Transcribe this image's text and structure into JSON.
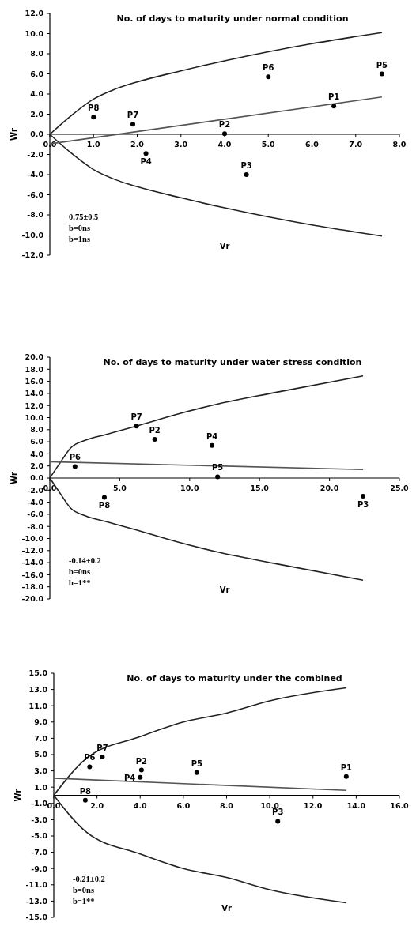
{
  "chart_data": [
    {
      "type": "scatter",
      "title": "No. of days to maturity under normal condition",
      "xlabel": "Vr",
      "ylabel": "Wr",
      "xlim": [
        0,
        8
      ],
      "ylim": [
        -12,
        12
      ],
      "xticks": [
        {
          "value": 0,
          "label": "0.0"
        },
        {
          "value": 1,
          "label": "1.0"
        },
        {
          "value": 2,
          "label": "2.0"
        },
        {
          "value": 3,
          "label": "3.0"
        },
        {
          "value": 4,
          "label": "4.0"
        },
        {
          "value": 5,
          "label": "5.0"
        },
        {
          "value": 6,
          "label": "6.0"
        },
        {
          "value": 7,
          "label": "7.0"
        },
        {
          "value": 8,
          "label": "8.0"
        }
      ],
      "yticks": [
        {
          "value": -12,
          "label": "-12.0"
        },
        {
          "value": -10,
          "label": "-10.0"
        },
        {
          "value": -8,
          "label": "-8.0"
        },
        {
          "value": -6,
          "label": "-6.0"
        },
        {
          "value": -4,
          "label": "-4.0"
        },
        {
          "value": -2,
          "label": "-2.0"
        },
        {
          "value": 0,
          "label": "0.0"
        },
        {
          "value": 2,
          "label": "2.0"
        },
        {
          "value": 4,
          "label": "4.0"
        },
        {
          "value": 6,
          "label": "6.0"
        },
        {
          "value": 8,
          "label": "8.0"
        },
        {
          "value": 10,
          "label": "10.0"
        },
        {
          "value": 12,
          "label": "12.0"
        }
      ],
      "grid": false,
      "series": [
        {
          "type": "line",
          "color": "#222222",
          "x": [
            0,
            0.5,
            1.0,
            1.5,
            2,
            3,
            4,
            5,
            6,
            7,
            7.6
          ],
          "values": [
            0,
            1.9,
            3.5,
            4.5,
            5.2,
            6.3,
            7.3,
            8.2,
            9.0,
            9.7,
            10.1
          ]
        },
        {
          "type": "line",
          "color": "#222222",
          "x": [
            0,
            0.5,
            1.0,
            1.5,
            2,
            3,
            4,
            5,
            6,
            7,
            7.6
          ],
          "values": [
            0,
            -1.9,
            -3.5,
            -4.5,
            -5.2,
            -6.3,
            -7.3,
            -8.2,
            -9.0,
            -9.7,
            -10.1
          ]
        },
        {
          "type": "line",
          "color": "#555555",
          "x": [
            0,
            7.6
          ],
          "values": [
            -0.95,
            3.7
          ]
        },
        {
          "color": "#000000",
          "marker": "circle",
          "x": [
            6.5,
            4.0,
            4.5,
            2.2,
            7.6,
            5.0,
            1.9,
            1.0
          ],
          "values": [
            2.8,
            0.05,
            -4.0,
            -1.9,
            6.0,
            5.7,
            1.0,
            1.7
          ]
        }
      ],
      "annotations": [
        {
          "text": "P1",
          "x": 6.5,
          "y": 2.8
        },
        {
          "text": "P2",
          "x": 4.0,
          "y": 0.05
        },
        {
          "text": "P3",
          "x": 4.5,
          "y": -4.0
        },
        {
          "text": "P4",
          "x": 2.2,
          "y": -1.9
        },
        {
          "text": "P5",
          "x": 7.6,
          "y": 6.0
        },
        {
          "text": "P6",
          "x": 5.0,
          "y": 5.7
        },
        {
          "text": "P7",
          "x": 1.9,
          "y": 1.0
        },
        {
          "text": "P8",
          "x": 1.0,
          "y": 1.7
        },
        "0.75±0.5",
        "b=0ns",
        "b=1ns"
      ]
    },
    {
      "type": "scatter",
      "title": "No. of days to maturity under water stress condition",
      "xlabel": "Vr",
      "ylabel": "Wr",
      "xlim": [
        0,
        25
      ],
      "ylim": [
        -20,
        20
      ],
      "xticks": [
        {
          "value": 0,
          "label": "0.0"
        },
        {
          "value": 5,
          "label": "5.0"
        },
        {
          "value": 10,
          "label": "10.0"
        },
        {
          "value": 15,
          "label": "15.0"
        },
        {
          "value": 20,
          "label": "20.0"
        },
        {
          "value": 25,
          "label": "25.0"
        }
      ],
      "yticks": [
        {
          "value": -20,
          "label": "-20.0"
        },
        {
          "value": -18,
          "label": "-18.0"
        },
        {
          "value": -16,
          "label": "-16.0"
        },
        {
          "value": -14,
          "label": "-14.0"
        },
        {
          "value": -12,
          "label": "-12.0"
        },
        {
          "value": -10,
          "label": "-10.0"
        },
        {
          "value": -8,
          "label": "-8.0"
        },
        {
          "value": -6,
          "label": "-6.0"
        },
        {
          "value": -4,
          "label": "-4.0"
        },
        {
          "value": -2,
          "label": "-2.0"
        },
        {
          "value": 0,
          "label": "0.0"
        },
        {
          "value": 2,
          "label": "2.0"
        },
        {
          "value": 4,
          "label": "4.0"
        },
        {
          "value": 6,
          "label": "6.0"
        },
        {
          "value": 8,
          "label": "8.0"
        },
        {
          "value": 10,
          "label": "10.0"
        },
        {
          "value": 12,
          "label": "12.0"
        },
        {
          "value": 14,
          "label": "14.0"
        },
        {
          "value": 16,
          "label": "16.0"
        },
        {
          "value": 18,
          "label": "18.0"
        },
        {
          "value": 20,
          "label": "20.0"
        }
      ],
      "grid": false,
      "series": [
        {
          "type": "line",
          "color": "#222222",
          "x": [
            0,
            0.7,
            1.5,
            2.6,
            4,
            6.2,
            9,
            11.9,
            16,
            22.4
          ],
          "values": [
            0,
            2.4,
            5.0,
            6.3,
            7.2,
            8.6,
            10.5,
            12.2,
            14.1,
            16.9
          ]
        },
        {
          "type": "line",
          "color": "#222222",
          "x": [
            0,
            0.7,
            1.5,
            2.6,
            4,
            6.2,
            9,
            11.9,
            16,
            22.4
          ],
          "values": [
            0,
            -2.4,
            -5.0,
            -6.3,
            -7.2,
            -8.6,
            -10.5,
            -12.2,
            -14.1,
            -16.9
          ]
        },
        {
          "type": "line",
          "color": "#555555",
          "x": [
            0,
            22.4
          ],
          "values": [
            2.7,
            1.4
          ]
        },
        {
          "color": "#000000",
          "marker": "circle",
          "x": [
            7.5,
            22.4,
            11.6,
            12.0,
            1.8,
            6.2,
            3.9
          ],
          "values": [
            6.4,
            -3.0,
            5.4,
            0.2,
            1.9,
            8.6,
            -3.2
          ]
        }
      ],
      "annotations": [
        {
          "text": "P2",
          "x": 7.5,
          "y": 6.4
        },
        {
          "text": "P3",
          "x": 22.4,
          "y": -3.0
        },
        {
          "text": "P4",
          "x": 11.6,
          "y": 5.4
        },
        {
          "text": "P5",
          "x": 12.0,
          "y": 0.2
        },
        {
          "text": "P6",
          "x": 1.8,
          "y": 1.9
        },
        {
          "text": "P7",
          "x": 6.2,
          "y": 8.6
        },
        {
          "text": "P8",
          "x": 3.9,
          "y": -3.2
        },
        "-0.14±0.2",
        "b=0ns",
        "b=1**"
      ]
    },
    {
      "type": "scatter",
      "title": "No. of days to maturity under the combined",
      "xlabel": "Vr",
      "ylabel": "Wr",
      "xlim": [
        0,
        16
      ],
      "ylim": [
        -15,
        15
      ],
      "xticks": [
        {
          "value": 0,
          "label": "0.0"
        },
        {
          "value": 2,
          "label": "2.0"
        },
        {
          "value": 4,
          "label": "4.0"
        },
        {
          "value": 6,
          "label": "6.0"
        },
        {
          "value": 8,
          "label": "8.0"
        },
        {
          "value": 10,
          "label": "10.0"
        },
        {
          "value": 12,
          "label": "12.0"
        },
        {
          "value": 14,
          "label": "14.0"
        },
        {
          "value": 16,
          "label": "16.0"
        }
      ],
      "yticks": [
        {
          "value": -15,
          "label": "-15.0"
        },
        {
          "value": -13,
          "label": "-13.0"
        },
        {
          "value": -11,
          "label": "-11.0"
        },
        {
          "value": -9,
          "label": "-9.0"
        },
        {
          "value": -7,
          "label": "-7.0"
        },
        {
          "value": -5,
          "label": "-5.0"
        },
        {
          "value": -3,
          "label": "-3.0"
        },
        {
          "value": -1,
          "label": "-1.0"
        },
        {
          "value": 1,
          "label": "1.0"
        },
        {
          "value": 3,
          "label": "3.0"
        },
        {
          "value": 5,
          "label": "5.0"
        },
        {
          "value": 7,
          "label": "7.0"
        },
        {
          "value": 9,
          "label": "9.0"
        },
        {
          "value": 11,
          "label": "11.0"
        },
        {
          "value": 13,
          "label": "13.0"
        },
        {
          "value": 15,
          "label": "15.0"
        }
      ],
      "grid": false,
      "series": [
        {
          "type": "line",
          "color": "#222222",
          "x": [
            0,
            1.5,
            4.0,
            6,
            8,
            10,
            13.54
          ],
          "values": [
            0,
            4.5,
            7.2,
            9.0,
            10.1,
            11.6,
            13.2
          ]
        },
        {
          "type": "line",
          "color": "#222222",
          "x": [
            0,
            1.5,
            4.0,
            6,
            8,
            10,
            13.54
          ],
          "values": [
            0,
            -4.5,
            -7.2,
            -9.0,
            -10.1,
            -11.6,
            -13.2
          ]
        },
        {
          "type": "line",
          "color": "#555555",
          "x": [
            0,
            13.54
          ],
          "values": [
            2.1,
            0.6
          ]
        },
        {
          "color": "#000000",
          "marker": "circle",
          "x": [
            13.54,
            4.06,
            10.37,
            4.0,
            6.62,
            1.66,
            2.25,
            1.46
          ],
          "values": [
            2.3,
            3.1,
            -3.2,
            2.2,
            2.8,
            3.5,
            4.7,
            -0.6
          ]
        }
      ],
      "annotations": [
        {
          "text": "P1",
          "x": 13.54,
          "y": 2.3
        },
        {
          "text": "P2",
          "x": 4.06,
          "y": 3.1
        },
        {
          "text": "P3",
          "x": 10.37,
          "y": -3.2
        },
        {
          "text": "P4",
          "x": 4.0,
          "y": 2.2
        },
        {
          "text": "P5",
          "x": 6.62,
          "y": 2.8
        },
        {
          "text": "P6",
          "x": 1.66,
          "y": 3.5
        },
        {
          "text": "P7",
          "x": 2.25,
          "y": 4.7
        },
        {
          "text": "P8",
          "x": 1.46,
          "y": -0.6
        },
        "-0.21±0.2",
        "b=0ns",
        "b=1**"
      ]
    }
  ]
}
